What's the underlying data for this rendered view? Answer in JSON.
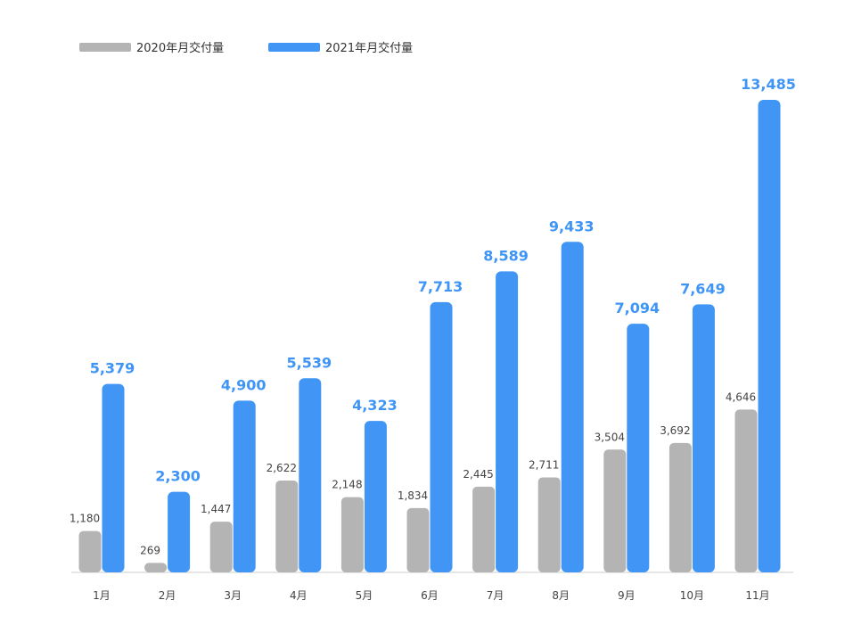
{
  "chart_data": {
    "type": "bar",
    "title": "",
    "xlabel": "",
    "ylabel": "",
    "ylim": [
      0,
      13485
    ],
    "grid": false,
    "legend_position": "top-left",
    "categories": [
      "1月",
      "2月",
      "3月",
      "4月",
      "5月",
      "6月",
      "7月",
      "8月",
      "9月",
      "10月",
      "11月"
    ],
    "series": [
      {
        "name": "2020年月交付量",
        "color": "#b4b4b4",
        "values": [
          1180,
          269,
          1447,
          2622,
          2148,
          1834,
          2445,
          2711,
          3504,
          3692,
          4646
        ],
        "labels": [
          "1,180",
          "269",
          "1,447",
          "2,622",
          "2,148",
          "1,834",
          "2,445",
          "2,711",
          "3,504",
          "3,692",
          "4,646"
        ]
      },
      {
        "name": "2021年月交付量",
        "color": "#4196f5",
        "values": [
          5379,
          2300,
          4900,
          5539,
          4323,
          7713,
          8589,
          9433,
          7094,
          7649,
          13485
        ],
        "labels": [
          "5,379",
          "2,300",
          "4,900",
          "5,539",
          "4,323",
          "7,713",
          "8,589",
          "9,433",
          "7,094",
          "7,649",
          "13,485"
        ]
      }
    ]
  }
}
